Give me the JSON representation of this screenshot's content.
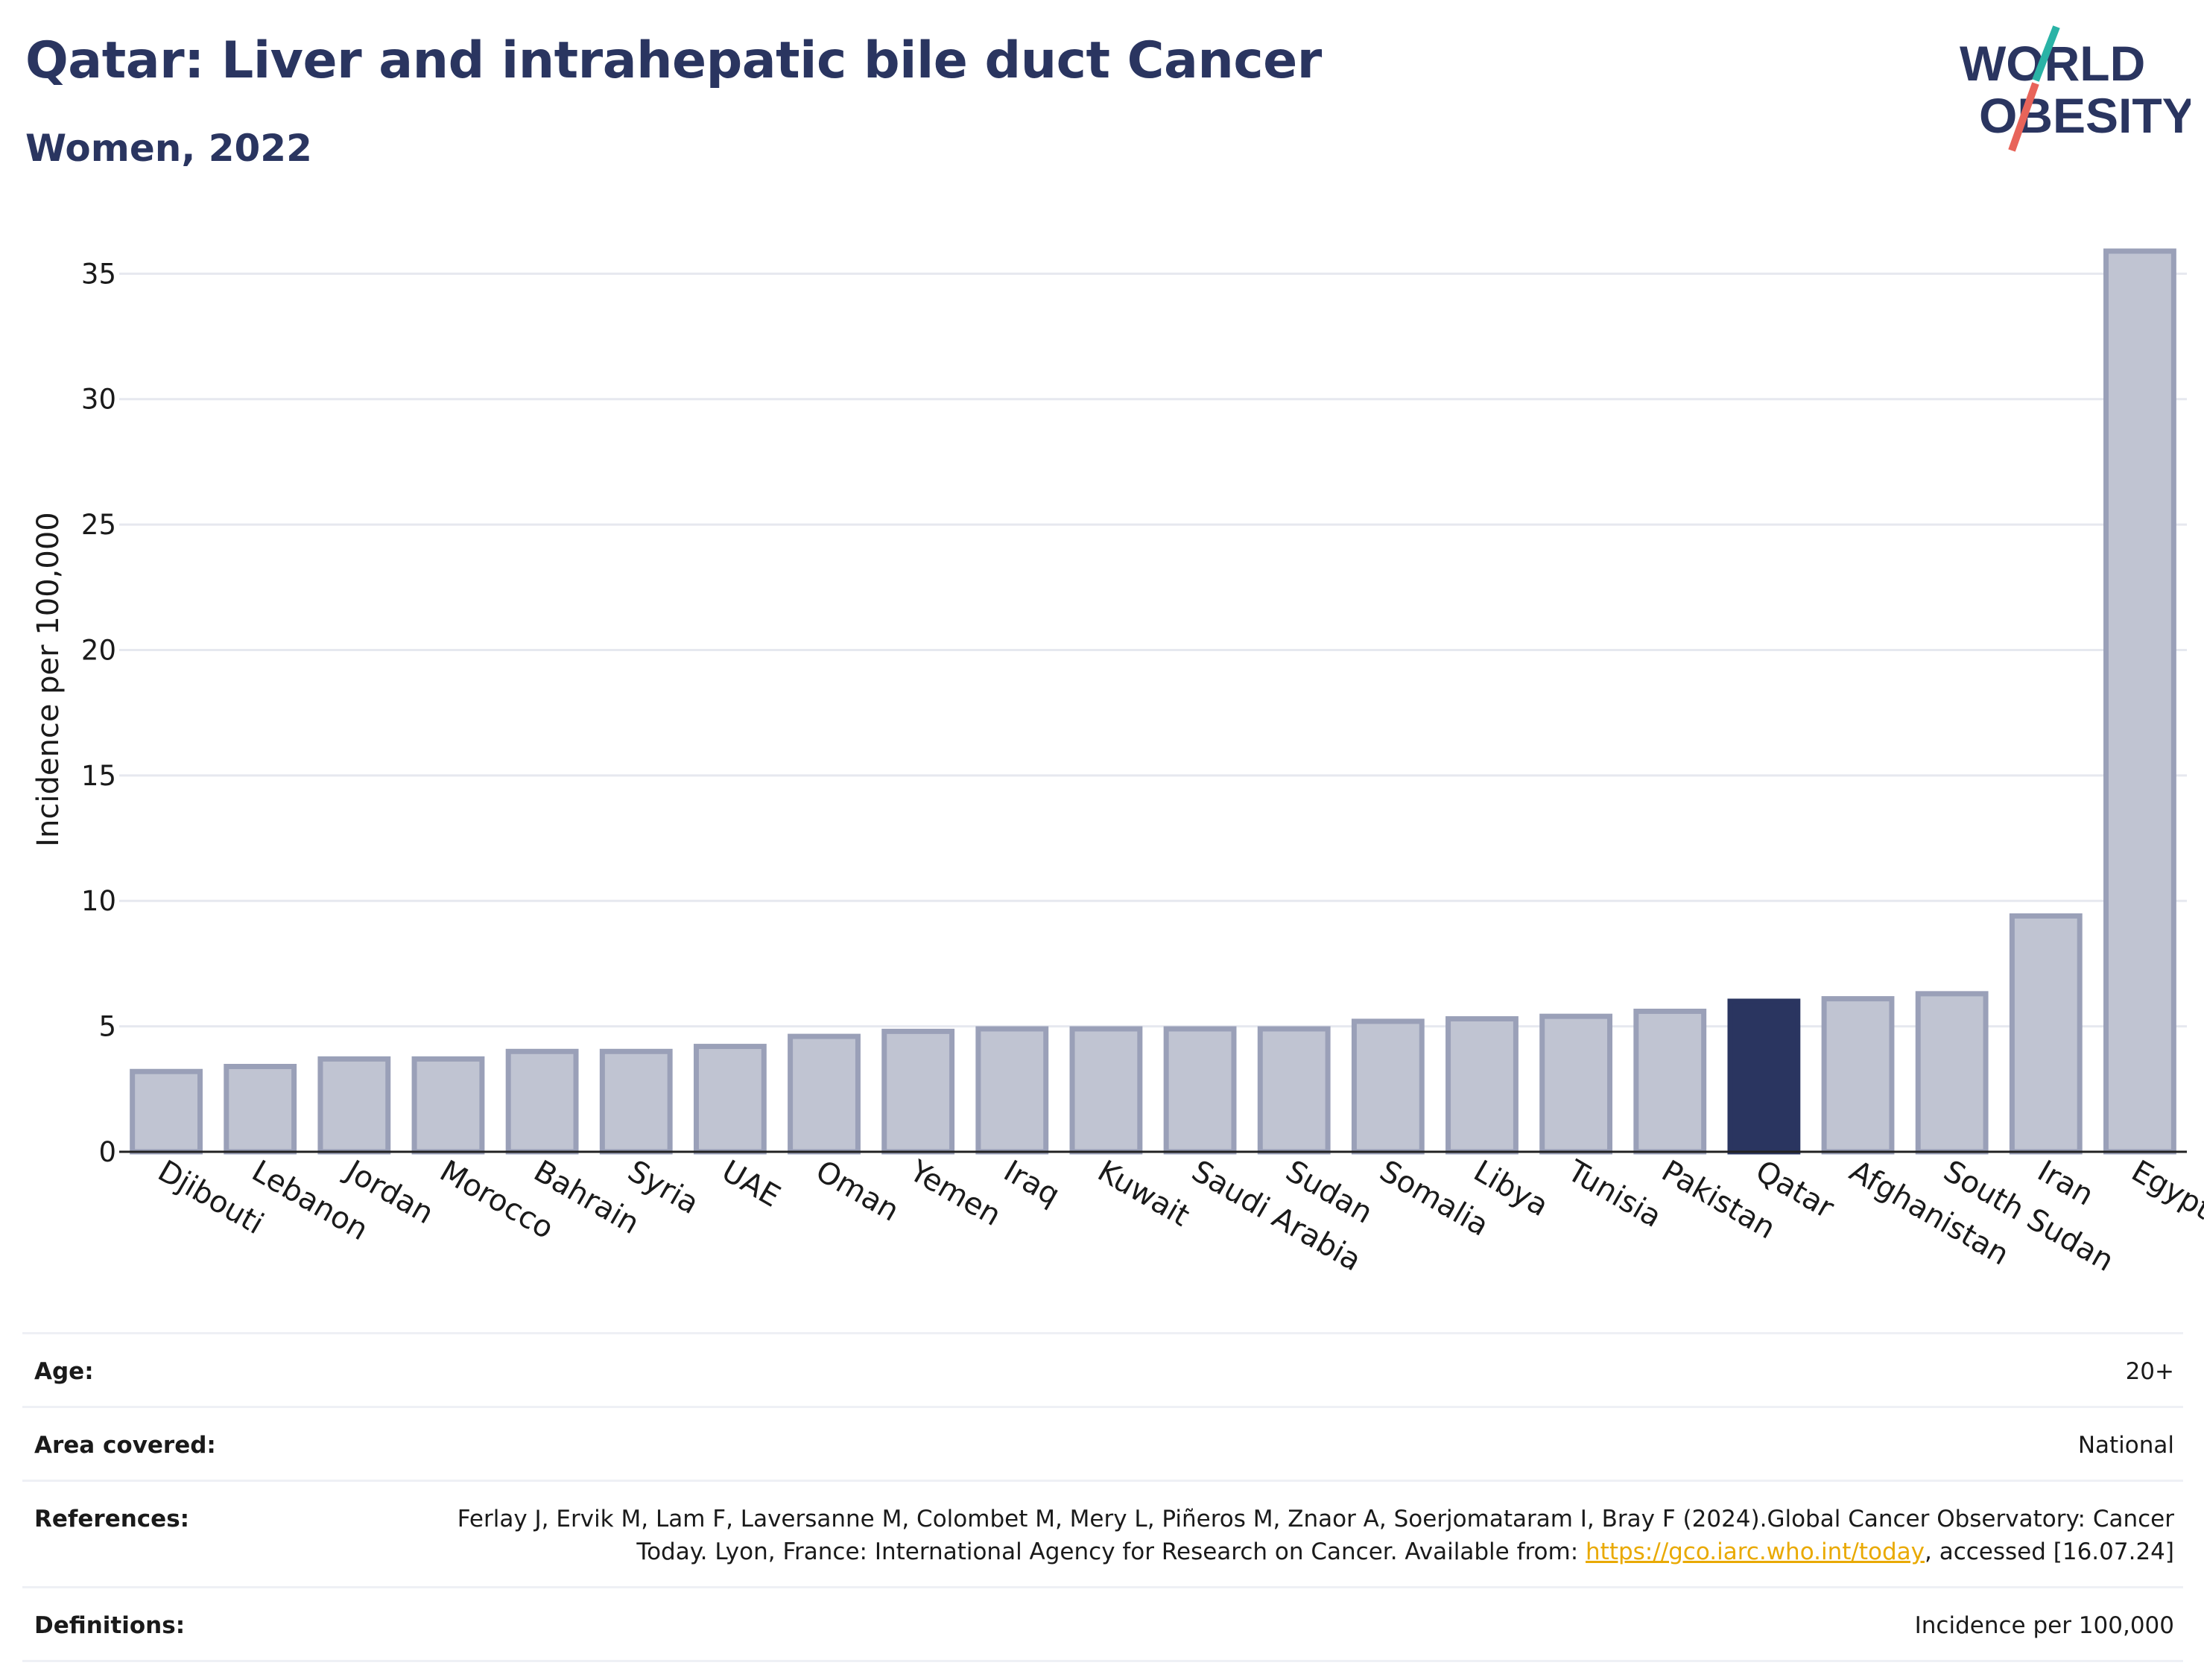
{
  "header": {
    "title": "Qatar: Liver and intrahepatic bile duct Cancer",
    "subtitle": "Women, 2022"
  },
  "logo": {
    "line1": "WORLD",
    "line2": "OBESITY",
    "text_color": "#2a3560",
    "slash_color_top": "#2ab3a6",
    "slash_color_bottom": "#e8645a"
  },
  "chart_data": {
    "type": "bar",
    "categories": [
      "Djibouti",
      "Lebanon",
      "Jordan",
      "Morocco",
      "Bahrain",
      "Syria",
      "UAE",
      "Oman",
      "Yemen",
      "Iraq",
      "Kuwait",
      "Saudi Arabia",
      "Sudan",
      "Somalia",
      "Libya",
      "Tunisia",
      "Pakistan",
      "Qatar",
      "Afghanistan",
      "South Sudan",
      "Iran",
      "Egypt"
    ],
    "values": [
      3.2,
      3.4,
      3.7,
      3.7,
      4.0,
      4.0,
      4.2,
      4.6,
      4.8,
      4.9,
      4.9,
      4.9,
      4.9,
      5.2,
      5.3,
      5.4,
      5.6,
      6.0,
      6.1,
      6.3,
      9.4,
      35.9
    ],
    "highlight": "Qatar",
    "title": "Qatar: Liver and intrahepatic bile duct Cancer",
    "subtitle": "Women, 2022",
    "xlabel": "",
    "ylabel": "Incidence per 100,000",
    "ylim": [
      0,
      37
    ],
    "yticks": [
      0,
      5,
      10,
      15,
      20,
      25,
      30,
      35
    ],
    "grid": true,
    "bar_color": "#c0c4d2",
    "bar_border_color": "#9aa0b8",
    "highlight_color": "#2a3560"
  },
  "info": {
    "age_label": "Age:",
    "age_value": "20+",
    "area_label": "Area covered:",
    "area_value": "National",
    "references_label": "References:",
    "references_text_before": "Ferlay J, Ervik M, Lam F, Laversanne M, Colombet M, Mery L, Piñeros M, Znaor A, Soerjomataram I, Bray F (2024).Global Cancer Observatory: Cancer Today. Lyon, France: International Agency for Research on Cancer. Available from: ",
    "references_link": "https://gco.iarc.who.int/today",
    "references_text_after": ", accessed [16.07.24]",
    "definitions_label": "Definitions:",
    "definitions_value": "Incidence per 100,000"
  }
}
